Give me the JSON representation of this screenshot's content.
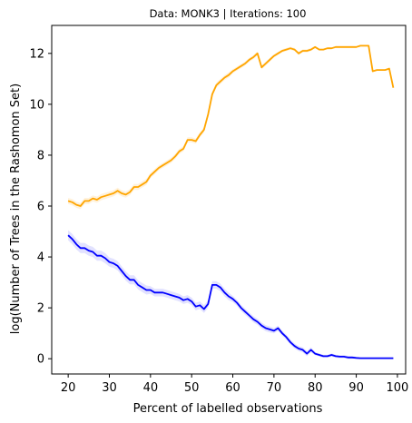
{
  "chart_data": {
    "type": "line",
    "title": "Data: MONK3 | Iterations: 100",
    "xlabel": "Percent of labelled observations",
    "ylabel": "log(Number of Trees in the Rashomon Set)",
    "xlim": [
      16,
      102
    ],
    "ylim": [
      -0.6,
      13.1
    ],
    "xticks": [
      20,
      30,
      40,
      50,
      60,
      70,
      80,
      90,
      100
    ],
    "yticks": [
      0,
      2,
      4,
      6,
      8,
      10,
      12
    ],
    "grid": false,
    "series": [
      {
        "color": "#ffa500",
        "band_color": "#fff2dc",
        "x": [
          20,
          21,
          22,
          23,
          24,
          25,
          26,
          27,
          28,
          29,
          30,
          31,
          32,
          33,
          34,
          35,
          36,
          37,
          38,
          39,
          40,
          41,
          42,
          43,
          44,
          45,
          46,
          47,
          48,
          49,
          50,
          51,
          52,
          53,
          54,
          55,
          56,
          57,
          58,
          59,
          60,
          61,
          62,
          63,
          64,
          65,
          66,
          67,
          68,
          69,
          70,
          71,
          72,
          73,
          74,
          75,
          76,
          77,
          78,
          79,
          80,
          81,
          82,
          83,
          84,
          85,
          86,
          87,
          88,
          89,
          90,
          91,
          92,
          93,
          94,
          95,
          96,
          97,
          98,
          99
        ],
        "y": [
          6.2,
          6.15,
          6.05,
          6.0,
          6.2,
          6.2,
          6.3,
          6.25,
          6.35,
          6.4,
          6.45,
          6.5,
          6.6,
          6.5,
          6.45,
          6.55,
          6.75,
          6.75,
          6.85,
          6.95,
          7.2,
          7.35,
          7.5,
          7.6,
          7.7,
          7.8,
          7.95,
          8.15,
          8.25,
          8.6,
          8.6,
          8.55,
          8.8,
          9.0,
          9.6,
          10.4,
          10.75,
          10.9,
          11.05,
          11.15,
          11.3,
          11.4,
          11.5,
          11.6,
          11.75,
          11.85,
          12.0,
          11.45,
          11.6,
          11.75,
          11.9,
          12.0,
          12.1,
          12.15,
          12.2,
          12.15,
          12.0,
          12.1,
          12.1,
          12.15,
          12.25,
          12.15,
          12.15,
          12.2,
          12.2,
          12.25,
          12.25,
          12.25,
          12.25,
          12.25,
          12.25,
          12.3,
          12.3,
          12.3,
          11.3,
          11.35,
          11.35,
          11.35,
          11.4,
          10.65
        ],
        "err": [
          0.12,
          0.12,
          0.12,
          0.12,
          0.12,
          0.12,
          0.12,
          0.12,
          0.12,
          0.12,
          0.12,
          0.12,
          0.12,
          0.12,
          0.12,
          0.12,
          0.12,
          0.12,
          0.12,
          0.12,
          0.1,
          0.1,
          0.1,
          0.1,
          0.1,
          0.1,
          0.1,
          0.1,
          0.1,
          0.1,
          0.1,
          0.1,
          0.1,
          0.1,
          0.1,
          0.1,
          0.1,
          0.1,
          0.1,
          0.1,
          0.08,
          0.08,
          0.08,
          0.08,
          0.08,
          0.08,
          0.08,
          0.08,
          0.08,
          0.08,
          0.06,
          0.06,
          0.06,
          0.06,
          0.06,
          0.06,
          0.06,
          0.06,
          0.06,
          0.06,
          0.04,
          0.04,
          0.04,
          0.04,
          0.04,
          0.04,
          0.04,
          0.04,
          0.04,
          0.04,
          0.03,
          0.03,
          0.03,
          0.03,
          0.03,
          0.03,
          0.03,
          0.03,
          0.03,
          0.03
        ]
      },
      {
        "color": "#0000ff",
        "band_color": "#e2e2ff",
        "x": [
          20,
          21,
          22,
          23,
          24,
          25,
          26,
          27,
          28,
          29,
          30,
          31,
          32,
          33,
          34,
          35,
          36,
          37,
          38,
          39,
          40,
          41,
          42,
          43,
          44,
          45,
          46,
          47,
          48,
          49,
          50,
          51,
          52,
          53,
          54,
          55,
          56,
          57,
          58,
          59,
          60,
          61,
          62,
          63,
          64,
          65,
          66,
          67,
          68,
          69,
          70,
          71,
          72,
          73,
          74,
          75,
          76,
          77,
          78,
          79,
          80,
          81,
          82,
          83,
          84,
          85,
          86,
          87,
          88,
          89,
          90,
          91,
          92,
          93,
          94,
          95,
          96,
          97,
          98,
          99
        ],
        "y": [
          4.85,
          4.7,
          4.5,
          4.35,
          4.35,
          4.25,
          4.2,
          4.05,
          4.05,
          3.95,
          3.8,
          3.75,
          3.65,
          3.45,
          3.25,
          3.1,
          3.1,
          2.9,
          2.8,
          2.7,
          2.7,
          2.6,
          2.6,
          2.6,
          2.55,
          2.5,
          2.45,
          2.4,
          2.3,
          2.35,
          2.25,
          2.05,
          2.1,
          1.95,
          2.15,
          2.9,
          2.9,
          2.8,
          2.6,
          2.45,
          2.35,
          2.2,
          2.0,
          1.85,
          1.7,
          1.55,
          1.45,
          1.3,
          1.2,
          1.15,
          1.1,
          1.2,
          1.0,
          0.85,
          0.65,
          0.5,
          0.4,
          0.35,
          0.2,
          0.35,
          0.2,
          0.15,
          0.1,
          0.1,
          0.15,
          0.1,
          0.08,
          0.08,
          0.05,
          0.05,
          0.03,
          0.02,
          0.02,
          0.02,
          0.02,
          0.02,
          0.02,
          0.02,
          0.02,
          0.02
        ],
        "err": [
          0.2,
          0.2,
          0.2,
          0.2,
          0.2,
          0.2,
          0.2,
          0.2,
          0.2,
          0.2,
          0.18,
          0.18,
          0.18,
          0.18,
          0.18,
          0.18,
          0.18,
          0.18,
          0.18,
          0.18,
          0.15,
          0.15,
          0.15,
          0.15,
          0.15,
          0.15,
          0.15,
          0.15,
          0.15,
          0.15,
          0.15,
          0.15,
          0.15,
          0.15,
          0.15,
          0.15,
          0.15,
          0.15,
          0.15,
          0.15,
          0.12,
          0.12,
          0.12,
          0.12,
          0.12,
          0.12,
          0.12,
          0.12,
          0.12,
          0.12,
          0.1,
          0.1,
          0.1,
          0.1,
          0.1,
          0.1,
          0.1,
          0.1,
          0.1,
          0.1,
          0.06,
          0.06,
          0.06,
          0.06,
          0.06,
          0.06,
          0.06,
          0.06,
          0.06,
          0.06,
          0.03,
          0.03,
          0.03,
          0.03,
          0.03,
          0.03,
          0.03,
          0.03,
          0.03,
          0.03
        ]
      }
    ]
  }
}
